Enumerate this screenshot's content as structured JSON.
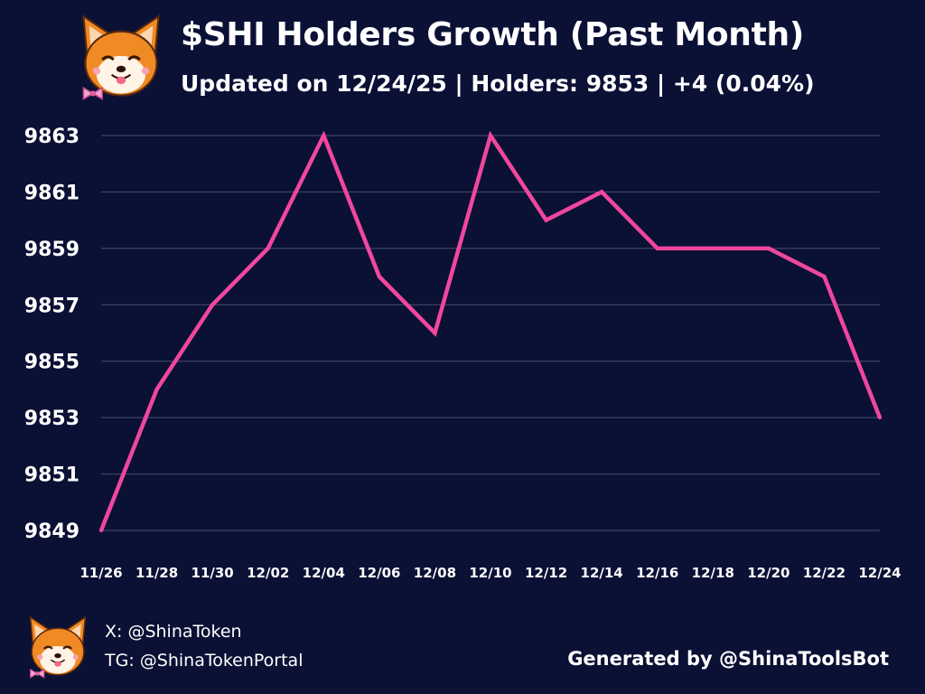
{
  "header": {
    "title": "$SHI Holders Growth (Past Month)",
    "subtitle": "Updated on 12/24/25 | Holders: 9853 | +4 (0.04%)",
    "logo_icon": "shiba-inu-logo-icon"
  },
  "footer": {
    "x_handle": "X: @ShinaToken",
    "tg_handle": "TG: @ShinaTokenPortal",
    "generated_by": "Generated by @ShinaToolsBot",
    "logo_icon": "shiba-inu-logo-icon"
  },
  "colors": {
    "background": "#0b1035",
    "line": "#f0479e",
    "grid": "#4a4f6f",
    "text": "#ffffff"
  },
  "chart_data": {
    "type": "line",
    "title": "$SHI Holders Growth (Past Month)",
    "x_tick_labels": [
      "11/26",
      "11/28",
      "11/30",
      "12/02",
      "12/04",
      "12/06",
      "12/08",
      "12/10",
      "12/12",
      "12/14",
      "12/16",
      "12/18",
      "12/20",
      "12/22",
      "12/24"
    ],
    "y_tick_labels": [
      "9863",
      "9861",
      "9859",
      "9857",
      "9855",
      "9853",
      "9851",
      "9849"
    ],
    "y_ticks": [
      9863,
      9861,
      9859,
      9857,
      9855,
      9853,
      9851,
      9849
    ],
    "ylim": [
      9849,
      9863
    ],
    "grid": true,
    "series": [
      {
        "x": [
          "11/26",
          "11/28",
          "11/30",
          "12/02",
          "12/04",
          "12/06",
          "12/08",
          "12/10",
          "12/12",
          "12/14",
          "12/16",
          "12/18",
          "12/20",
          "12/22",
          "12/24"
        ],
        "values": [
          9849,
          9854,
          9857,
          9859,
          9863,
          9858,
          9856,
          9863,
          9860,
          9861,
          9859,
          9859,
          9859,
          9858,
          9853
        ]
      }
    ]
  }
}
